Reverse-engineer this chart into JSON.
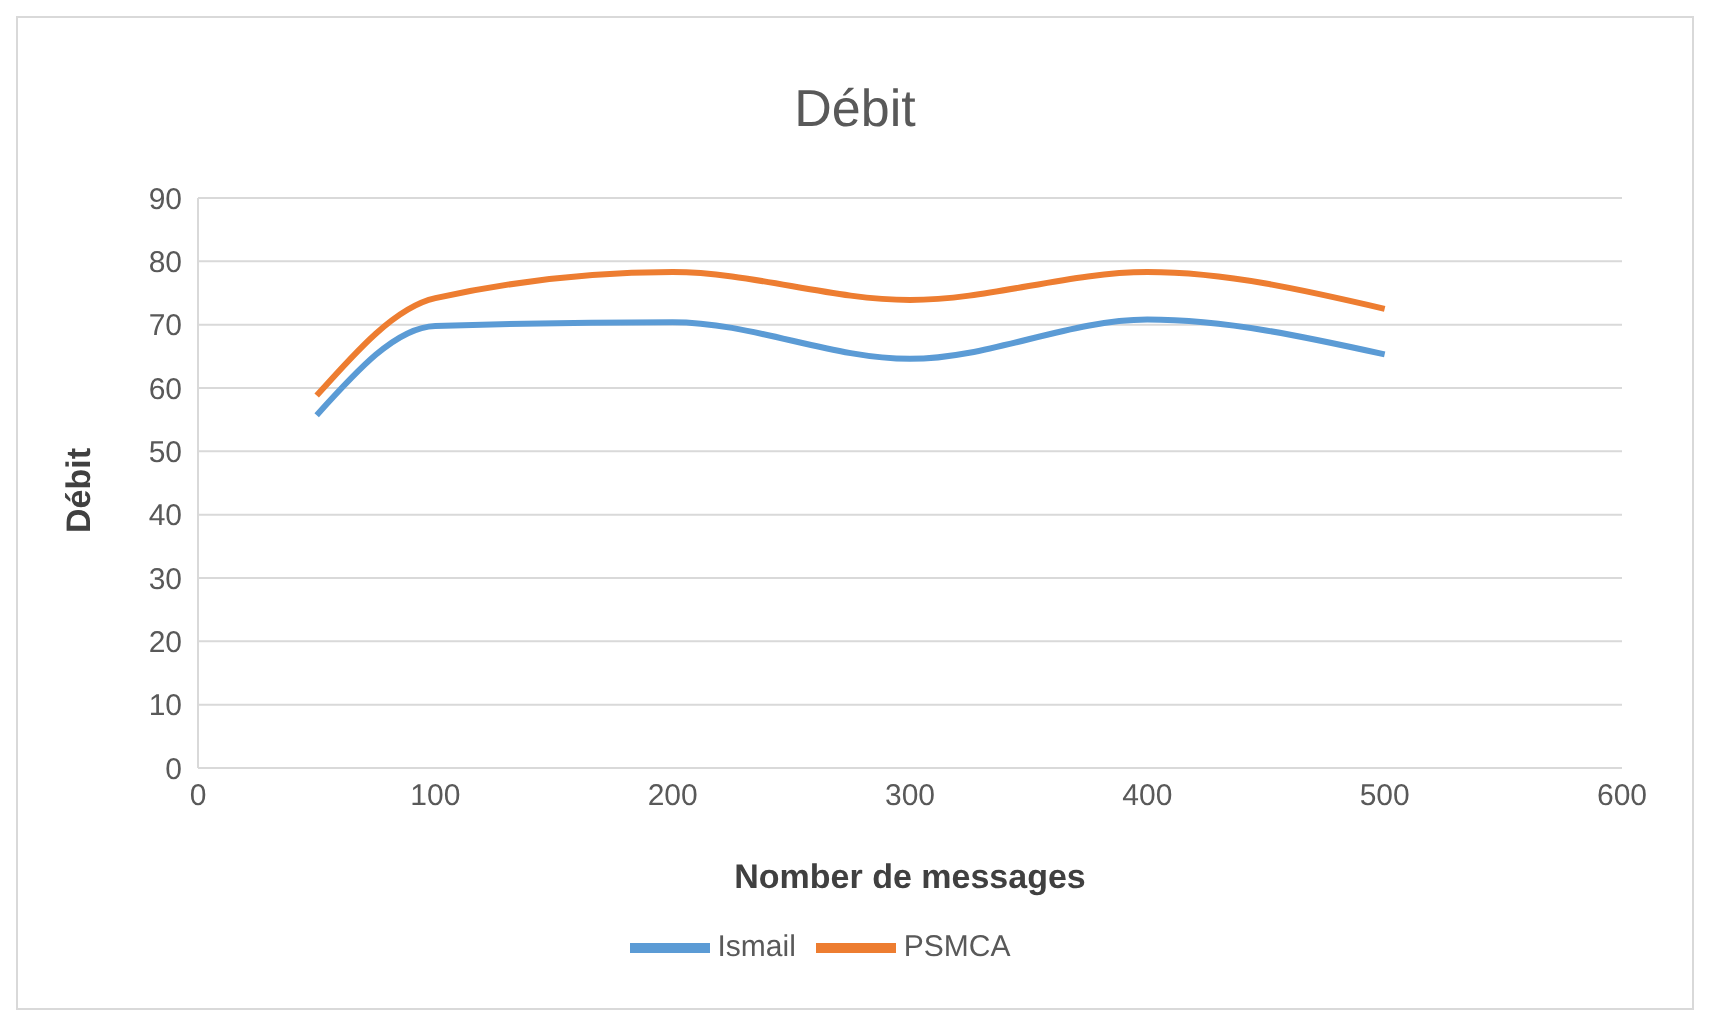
{
  "chart_data": {
    "type": "line",
    "title": "Débit",
    "xlabel": "Nomber de messages",
    "ylabel": "Débit",
    "x": [
      50,
      100,
      200,
      300,
      400,
      500
    ],
    "series": [
      {
        "name": "Ismail",
        "color": "#5b9bd5",
        "values": [
          55.7,
          69.8,
          70.4,
          64.6,
          70.8,
          65.3
        ]
      },
      {
        "name": "PSMCA",
        "color": "#ed7d31",
        "values": [
          58.8,
          74.2,
          78.3,
          73.9,
          78.3,
          72.5
        ]
      }
    ],
    "xlim": [
      0,
      600
    ],
    "xticks": [
      0,
      100,
      200,
      300,
      400,
      500,
      600
    ],
    "ylim": [
      0,
      90
    ],
    "yticks": [
      0,
      10,
      20,
      30,
      40,
      50,
      60,
      70,
      80,
      90
    ],
    "grid": "y",
    "legend": "bottom",
    "marker": "none",
    "line_style": "solid"
  }
}
